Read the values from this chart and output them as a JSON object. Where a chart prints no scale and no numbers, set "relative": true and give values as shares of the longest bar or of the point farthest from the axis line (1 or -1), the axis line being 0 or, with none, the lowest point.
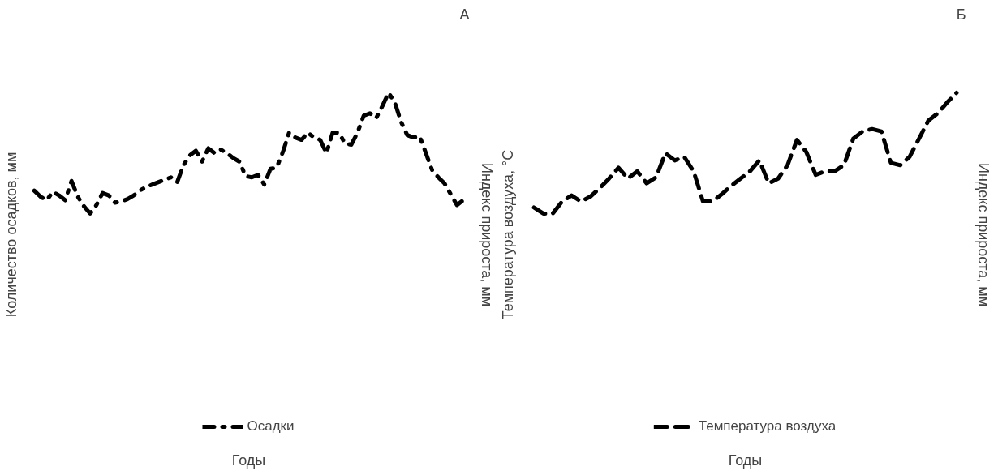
{
  "chart_data": [
    {
      "type": "line",
      "title": "А",
      "xlabel": "Годы",
      "ylabel": "Количество осадков, мм",
      "y2label": "Индекс прироста, мм",
      "relative": true,
      "legend": "bottom",
      "line_style": "dotted",
      "marker": "none",
      "categories": [
        null,
        null,
        null,
        null,
        null,
        null,
        null,
        null,
        null,
        null,
        null,
        null,
        null,
        null,
        null,
        null,
        null,
        null,
        null,
        null,
        null,
        null,
        null,
        null,
        null,
        null,
        null,
        null,
        null,
        null,
        null,
        null,
        null,
        null,
        null,
        null,
        null,
        null,
        null,
        null,
        null,
        null,
        null,
        null,
        null,
        null,
        null,
        null,
        null,
        null,
        null,
        null,
        null,
        null,
        null,
        null,
        null,
        null,
        null,
        null,
        null,
        null,
        null,
        null,
        null,
        null,
        null,
        null,
        null,
        null
      ],
      "series": [
        {
          "name": "Осадки",
          "color": "#000000",
          "values": [
            0.19,
            0.14,
            0.11,
            0.18,
            0.15,
            0.11,
            0.27,
            0.14,
            0.06,
            0,
            0.07,
            0.17,
            0.15,
            0.09,
            0.1,
            0.12,
            0.15,
            0.19,
            0.22,
            0.24,
            0.26,
            0.28,
            0.3,
            0.26,
            0.4,
            0.48,
            0.52,
            0.43,
            0.54,
            0.5,
            0.53,
            0.5,
            0.46,
            0.43,
            0.31,
            0.3,
            0.32,
            0.24,
            0.37,
            0.38,
            0.51,
            0.67,
            0.63,
            0.61,
            0.67,
            0.63,
            0.61,
            0.5,
            0.67,
            0.67,
            0.58,
            0.57,
            0.67,
            0.81,
            0.83,
            0.79,
            0.89,
            1,
            0.92,
            0.76,
            0.65,
            0.63,
            0.64,
            0.5,
            0.36,
            0.3,
            0.25,
            0.16,
            0.07,
            0.11
          ]
        }
      ]
    },
    {
      "type": "line",
      "title": "Б",
      "xlabel": "Годы",
      "ylabel": "Температура воздуха, °С",
      "y2label": "Индекс прироста, мм",
      "relative": true,
      "legend": "bottom",
      "line_style": "dashed",
      "marker": "none",
      "categories": [
        null,
        null,
        null,
        null,
        null,
        null,
        null,
        null,
        null,
        null,
        null,
        null,
        null,
        null,
        null,
        null,
        null,
        null,
        null,
        null,
        null,
        null,
        null,
        null,
        null,
        null,
        null,
        null,
        null,
        null,
        null,
        null,
        null,
        null,
        null,
        null,
        null,
        null,
        null,
        null,
        null,
        null,
        null,
        null,
        null,
        null
      ],
      "series": [
        {
          "name": "Температура воздуха",
          "color": "#000000",
          "values": [
            0.05,
            0,
            0,
            0.1,
            0.15,
            0.1,
            0.14,
            0.21,
            0.29,
            0.38,
            0.29,
            0.35,
            0.25,
            0.3,
            0.5,
            0.44,
            0.47,
            0.35,
            0.1,
            0.1,
            0.16,
            0.23,
            0.29,
            0.35,
            0.44,
            0.25,
            0.29,
            0.4,
            0.61,
            0.51,
            0.32,
            0.35,
            0.35,
            0.4,
            0.62,
            0.68,
            0.7,
            0.68,
            0.42,
            0.4,
            0.47,
            0.62,
            0.77,
            0.83,
            0.92,
            1
          ]
        }
      ]
    }
  ]
}
